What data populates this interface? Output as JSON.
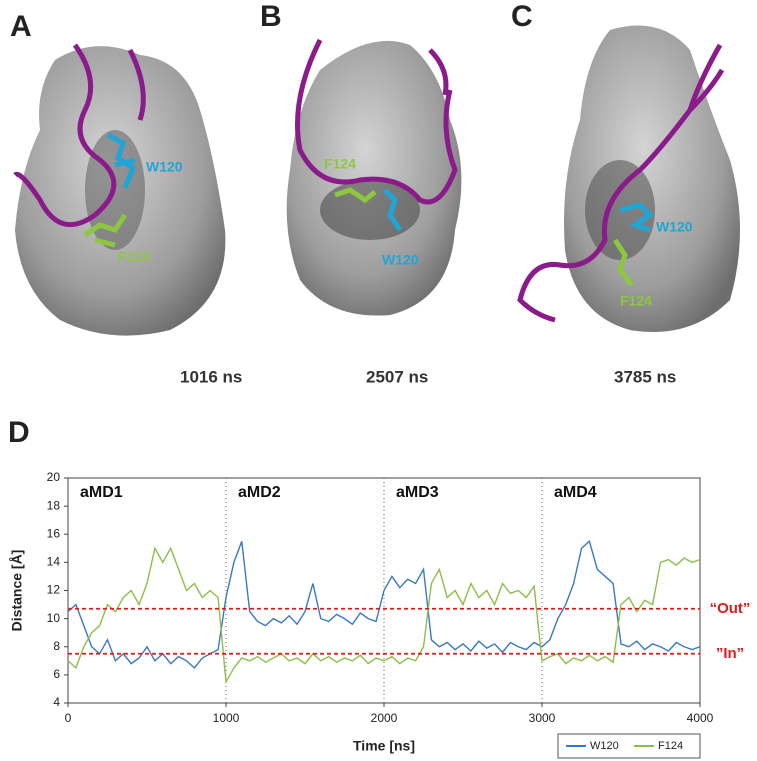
{
  "panels": [
    {
      "letter": "A",
      "time": "1016 ns",
      "labels": [
        "W120",
        "F124"
      ]
    },
    {
      "letter": "B",
      "time": "2507 ns",
      "labels": [
        "W120",
        "F124"
      ]
    },
    {
      "letter": "C",
      "time": "3785 ns",
      "labels": [
        "W120",
        "F124"
      ]
    }
  ],
  "chart_data": {
    "type": "line",
    "panel_label": "D",
    "x_label": "Time [ns]",
    "y_label": "Distance [Å]",
    "xlim": [
      0,
      4000
    ],
    "xticks": [
      0,
      1000,
      2000,
      3000,
      4000
    ],
    "ylim": [
      4,
      20
    ],
    "yticks": [
      4,
      6,
      8,
      10,
      12,
      14,
      16,
      18,
      20
    ],
    "phases": [
      {
        "start": 0,
        "label": "aMD1"
      },
      {
        "start": 1000,
        "label": "aMD2"
      },
      {
        "start": 2000,
        "label": "aMD3"
      },
      {
        "start": 3000,
        "label": "aMD4"
      }
    ],
    "reference_lines": [
      {
        "value": 10.7,
        "label": "“Out”",
        "color": "#e01b1b"
      },
      {
        "value": 7.5,
        "label": "”In”",
        "color": "#e01b1b"
      }
    ],
    "x": [
      0,
      50,
      100,
      150,
      200,
      250,
      300,
      350,
      400,
      450,
      500,
      550,
      600,
      650,
      700,
      750,
      800,
      850,
      900,
      950,
      1000,
      1050,
      1100,
      1150,
      1200,
      1250,
      1300,
      1350,
      1400,
      1450,
      1500,
      1550,
      1600,
      1650,
      1700,
      1750,
      1800,
      1850,
      1900,
      1950,
      2000,
      2050,
      2100,
      2150,
      2200,
      2250,
      2300,
      2350,
      2400,
      2450,
      2500,
      2550,
      2600,
      2650,
      2700,
      2750,
      2800,
      2850,
      2900,
      2950,
      3000,
      3050,
      3100,
      3150,
      3200,
      3250,
      3300,
      3350,
      3400,
      3450,
      3500,
      3550,
      3600,
      3650,
      3700,
      3750,
      3800,
      3850,
      3900,
      3950,
      4000
    ],
    "series": [
      {
        "name": "W120",
        "color": "#3a78c2",
        "values": [
          10.5,
          11,
          9.5,
          8,
          7.5,
          8.5,
          7,
          7.5,
          6.8,
          7.2,
          8,
          7,
          7.5,
          6.8,
          7.3,
          7,
          6.5,
          7.2,
          7.5,
          7.8,
          11.5,
          14,
          15.5,
          10.5,
          9.8,
          9.5,
          10,
          9.7,
          10.2,
          9.6,
          10.5,
          12.5,
          10,
          9.8,
          10.3,
          10,
          9.6,
          10.4,
          10,
          9.8,
          12,
          13,
          12.2,
          12.8,
          12.5,
          13.5,
          8.5,
          8,
          8.3,
          7.8,
          8.2,
          7.7,
          8.4,
          7.9,
          8.2,
          7.6,
          8.3,
          8,
          7.8,
          8.3,
          8,
          8.5,
          10,
          11,
          12.5,
          15,
          15.5,
          13.5,
          13,
          12.5,
          8.2,
          8,
          8.4,
          7.8,
          8.2,
          8,
          7.7,
          8.3,
          8,
          7.8,
          8
        ]
      },
      {
        "name": "F124",
        "color": "#8fbd4a",
        "values": [
          7,
          6.5,
          8,
          9,
          9.5,
          11,
          10.5,
          11.5,
          12,
          11,
          12.5,
          15,
          14,
          15,
          13.5,
          12,
          12.5,
          11.5,
          12,
          11.5,
          5.5,
          6.5,
          7.2,
          7,
          7.3,
          6.9,
          7.2,
          7.5,
          7,
          7.2,
          6.8,
          7.5,
          7,
          7.3,
          6.9,
          7.2,
          7,
          7.4,
          6.8,
          7.2,
          7,
          7.3,
          6.8,
          7.2,
          7,
          8,
          12.5,
          13.5,
          11.5,
          12,
          11,
          12.5,
          11.5,
          12,
          11,
          12.5,
          11.8,
          12,
          11.5,
          12.3,
          7,
          7.3,
          7.5,
          6.8,
          7.2,
          7,
          7.4,
          7,
          7.3,
          6.9,
          11,
          11.5,
          10.5,
          11.3,
          11,
          14,
          14.2,
          13.8,
          14.3,
          14,
          14.2
        ]
      }
    ]
  }
}
